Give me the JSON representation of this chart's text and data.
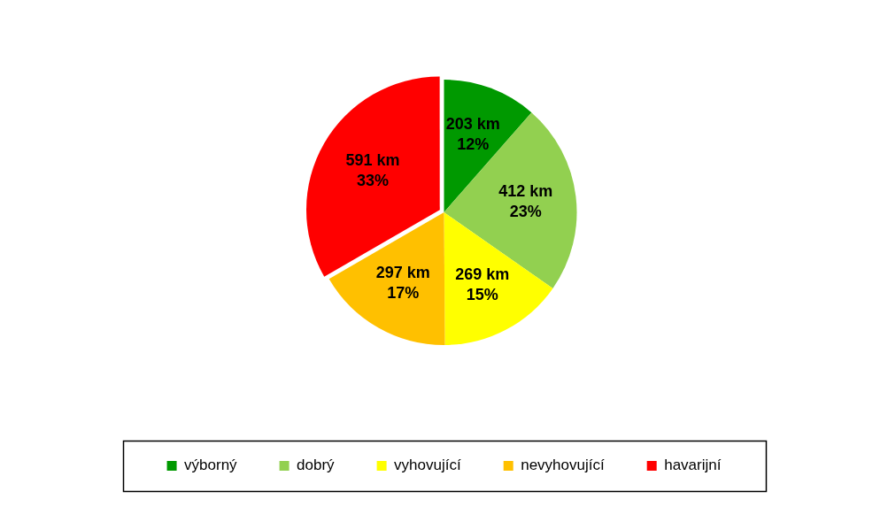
{
  "chart_data": {
    "type": "pie",
    "categories": [
      "výborný",
      "dobrý",
      "vyhovující",
      "nevyhovující",
      "havarijní"
    ],
    "values": [
      203,
      412,
      269,
      297,
      591
    ],
    "colors": [
      "#009900",
      "#92d050",
      "#ffff00",
      "#ffc000",
      "#ff0000"
    ],
    "value_labels": [
      "203 km\n12%",
      "412 km\n23%",
      "269 km\n15%",
      "297 km\n17%",
      "591 km\n33%"
    ],
    "legend": "bottom"
  }
}
